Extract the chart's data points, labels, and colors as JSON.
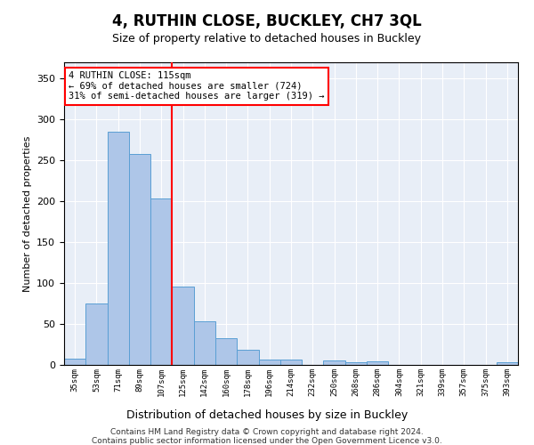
{
  "title": "4, RUTHIN CLOSE, BUCKLEY, CH7 3QL",
  "subtitle": "Size of property relative to detached houses in Buckley",
  "xlabel": "Distribution of detached houses by size in Buckley",
  "ylabel": "Number of detached properties",
  "categories": [
    "35sqm",
    "53sqm",
    "71sqm",
    "89sqm",
    "107sqm",
    "125sqm",
    "142sqm",
    "160sqm",
    "178sqm",
    "196sqm",
    "214sqm",
    "232sqm",
    "250sqm",
    "268sqm",
    "286sqm",
    "304sqm",
    "321sqm",
    "339sqm",
    "357sqm",
    "375sqm",
    "393sqm"
  ],
  "values": [
    8,
    75,
    285,
    258,
    203,
    96,
    53,
    33,
    18,
    7,
    7,
    0,
    5,
    3,
    4,
    0,
    0,
    0,
    0,
    0,
    3
  ],
  "bar_color": "#aec6e8",
  "bar_edge_color": "#5a9fd4",
  "vline_x": 4.5,
  "vline_color": "red",
  "annotation_text": "4 RUTHIN CLOSE: 115sqm\n← 69% of detached houses are smaller (724)\n31% of semi-detached houses are larger (319) →",
  "annotation_box_color": "white",
  "annotation_box_edge": "red",
  "ylim": [
    0,
    370
  ],
  "yticks": [
    0,
    50,
    100,
    150,
    200,
    250,
    300,
    350
  ],
  "bg_color": "#e8eef7",
  "footer1": "Contains HM Land Registry data © Crown copyright and database right 2024.",
  "footer2": "Contains public sector information licensed under the Open Government Licence v3.0."
}
